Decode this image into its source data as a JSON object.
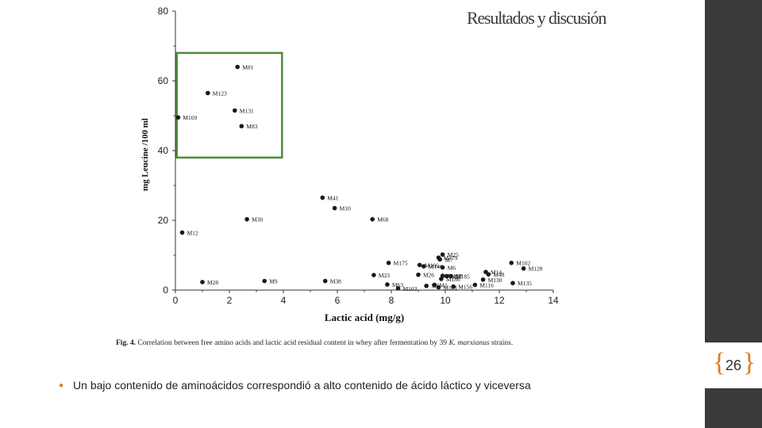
{
  "slide": {
    "title": "Resultados y discusión",
    "page_number": "26",
    "bullet": "Un bajo contenido de aminoácidos correspondió a alto contenido de ácido láctico y viceversa"
  },
  "colors": {
    "sidebar": "#3a3a3a",
    "accent": "#e07a20",
    "highlight_box": "#4f8a3c",
    "points": "#1a1a1a"
  },
  "caption": {
    "label": "Fig. 4.",
    "text_before": "Correlation between free amino acids and lactic acid residual content in whey after fermentation by 39",
    "species": "K. marxianus",
    "text_after": "strains."
  },
  "chart_data": {
    "type": "scatter",
    "title": "",
    "xlabel": "Lactic acid (mg/g)",
    "ylabel": "mg Leucine /100  ml",
    "xlim": [
      0,
      14
    ],
    "ylim": [
      0,
      80
    ],
    "xticks": [
      "0",
      "2",
      "4",
      "6",
      "8",
      "10",
      "12",
      "14"
    ],
    "yticks": [
      "0",
      "20",
      "40",
      "60",
      "80"
    ],
    "grid": false,
    "highlight_box": {
      "x": [
        0.05,
        3.95
      ],
      "y": [
        38,
        68
      ]
    },
    "points": [
      {
        "label": "M81",
        "x": 2.3,
        "y": 64
      },
      {
        "label": "M123",
        "x": 1.2,
        "y": 56.5
      },
      {
        "label": "M131",
        "x": 2.2,
        "y": 51.5
      },
      {
        "label": "M169",
        "x": 0.1,
        "y": 49.5
      },
      {
        "label": "M83",
        "x": 2.45,
        "y": 47
      },
      {
        "label": "M41",
        "x": 5.45,
        "y": 26.5
      },
      {
        "label": "M10",
        "x": 5.9,
        "y": 23.5
      },
      {
        "label": "M30",
        "x": 2.65,
        "y": 20.3
      },
      {
        "label": "M68",
        "x": 7.3,
        "y": 20.3
      },
      {
        "label": "M12",
        "x": 0.25,
        "y": 16.5
      },
      {
        "label": "M102",
        "x": 12.45,
        "y": 7.8
      },
      {
        "label": "M128",
        "x": 12.9,
        "y": 6.2
      },
      {
        "label": "M135",
        "x": 12.5,
        "y": 2.0
      },
      {
        "label": "M25",
        "x": 9.9,
        "y": 10.2
      },
      {
        "label": "M179",
        "x": 9.75,
        "y": 9.3
      },
      {
        "label": "M7",
        "x": 9.8,
        "y": 8.8
      },
      {
        "label": "M175",
        "x": 7.9,
        "y": 7.8
      },
      {
        "label": "M166",
        "x": 9.05,
        "y": 7.2
      },
      {
        "label": "M146",
        "x": 9.2,
        "y": 6.8
      },
      {
        "label": "M6",
        "x": 9.9,
        "y": 6.5
      },
      {
        "label": "M14",
        "x": 11.5,
        "y": 5.2
      },
      {
        "label": "M48",
        "x": 11.6,
        "y": 4.5
      },
      {
        "label": "M23",
        "x": 7.35,
        "y": 4.3
      },
      {
        "label": "M26",
        "x": 9.0,
        "y": 4.4
      },
      {
        "label": "M122",
        "x": 9.9,
        "y": 4.1
      },
      {
        "label": "M97",
        "x": 10.05,
        "y": 4.0
      },
      {
        "label": "M185",
        "x": 10.2,
        "y": 4.0
      },
      {
        "label": "M186",
        "x": 9.85,
        "y": 3.2
      },
      {
        "label": "M130",
        "x": 11.4,
        "y": 3.0
      },
      {
        "label": "M9",
        "x": 3.3,
        "y": 2.6
      },
      {
        "label": "M38",
        "x": 5.55,
        "y": 2.6
      },
      {
        "label": "M28",
        "x": 1.0,
        "y": 2.3
      },
      {
        "label": "M63",
        "x": 7.85,
        "y": 1.6
      },
      {
        "label": "M1",
        "x": 9.6,
        "y": 1.5
      },
      {
        "label": "M5",
        "x": 9.3,
        "y": 1.2
      },
      {
        "label": "M116",
        "x": 11.1,
        "y": 1.5
      },
      {
        "label": "M156",
        "x": 10.3,
        "y": 1.0
      },
      {
        "label": "M181",
        "x": 9.75,
        "y": 0.8
      },
      {
        "label": "M103",
        "x": 8.25,
        "y": 0.5
      }
    ]
  }
}
